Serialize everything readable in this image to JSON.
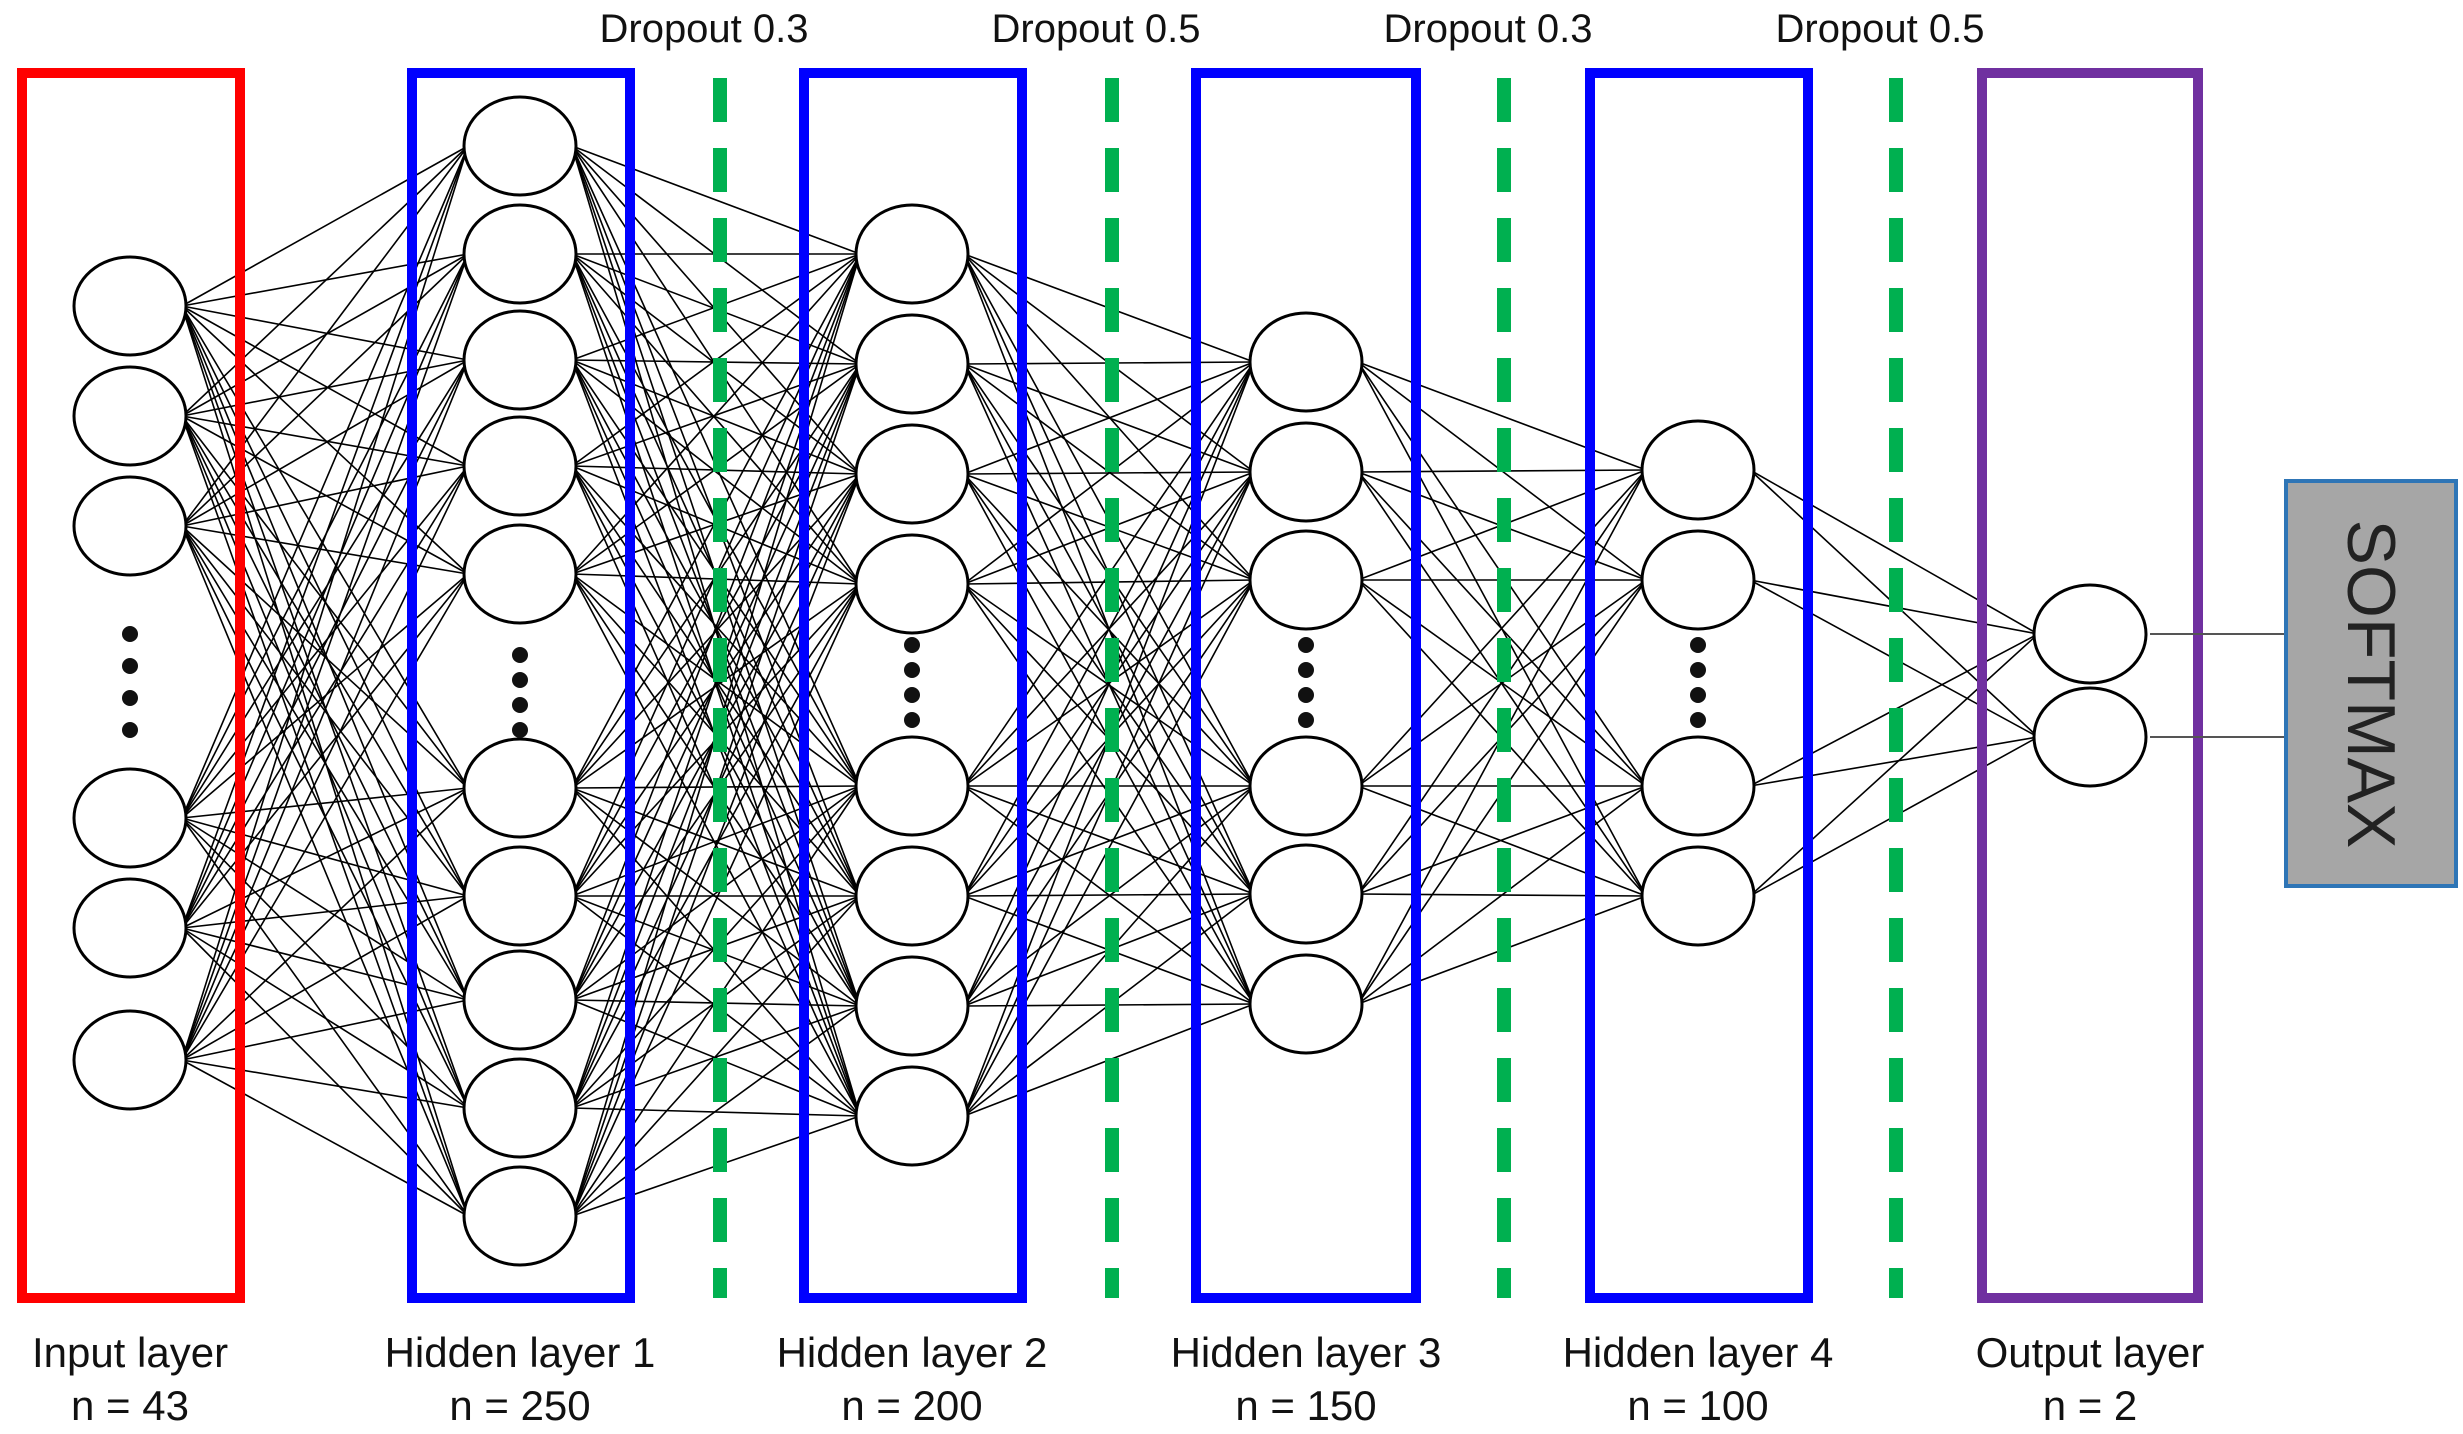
{
  "layers": [
    {
      "name": "Input layer",
      "n_label": "n = 43",
      "nodes_top": 3,
      "nodes_bottom": 3,
      "color": "#ff0000"
    },
    {
      "name": "Hidden layer 1",
      "n_label": "n = 250",
      "nodes_top": 5,
      "nodes_bottom": 5,
      "color": "#0000ff"
    },
    {
      "name": "Hidden layer 2",
      "n_label": "n = 200",
      "nodes_top": 4,
      "nodes_bottom": 4,
      "color": "#0000ff"
    },
    {
      "name": "Hidden layer 3",
      "n_label": "n = 150",
      "nodes_top": 3,
      "nodes_bottom": 3,
      "color": "#0000ff"
    },
    {
      "name": "Hidden layer 4",
      "n_label": "n = 100",
      "nodes_top": 2,
      "nodes_bottom": 2,
      "color": "#0000ff"
    },
    {
      "name": "Output layer",
      "n_label": "n = 2",
      "nodes_top": 2,
      "nodes_bottom": 0,
      "color": "#7030a0"
    }
  ],
  "dropouts": [
    {
      "label": "Dropout 0.3"
    },
    {
      "label": "Dropout 0.5"
    },
    {
      "label": "Dropout 0.3"
    },
    {
      "label": "Dropout 0.5"
    }
  ],
  "softmax": {
    "label": "SOFTMAX",
    "fill": "#a6a6a6",
    "border": "#2e75b6"
  },
  "colors": {
    "dropout": "#00b050",
    "node_stroke": "#000000",
    "edge": "#000000"
  }
}
